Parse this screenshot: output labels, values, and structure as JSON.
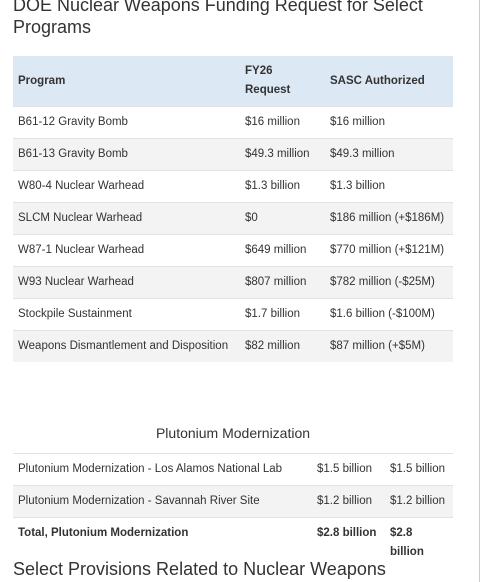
{
  "header": {
    "title": "DOE Nuclear Weapons Funding Request for Select Programs"
  },
  "table1": {
    "columns": [
      "Program",
      "FY26 Request",
      "SASC Authorized"
    ],
    "rows": [
      [
        "B61-12 Gravity Bomb",
        "$16 million",
        "$16 million"
      ],
      [
        "B61-13 Gravity Bomb",
        "$49.3 million",
        "$49.3 million"
      ],
      [
        "W80-4 Nuclear Warhead",
        "$1.3 billion",
        "$1.3 billion"
      ],
      [
        "SLCM Nuclear Warhead",
        "$0",
        "$186 million (+$186M)"
      ],
      [
        "W87-1 Nuclear Warhead",
        "$649 million",
        "$770 million (+$121M)"
      ],
      [
        "W93 Nuclear Warhead",
        "$807 million",
        "$782 million (-$25M)"
      ],
      [
        "Stockpile Sustainment",
        "$1.7 billion",
        "$1.6 billion (-$100M)"
      ],
      [
        "Weapons Dismantlement and Disposition",
        "$82 million",
        "$87 million (+$5M)"
      ]
    ]
  },
  "table2": {
    "caption": "Plutonium Modernization",
    "rows": [
      [
        "Plutonium Modernization - Los Alamos National Lab",
        "$1.5 billion",
        "$1.5 billion"
      ],
      [
        "Plutonium Modernization - Savannah River Site",
        "$1.2 billion",
        "$1.2 billion"
      ],
      [
        "Total, Plutonium Modernization",
        "$2.8 billion",
        "$2.8 billion"
      ]
    ]
  },
  "next_section": {
    "title": "Select Provisions Related to Nuclear Weapons"
  }
}
